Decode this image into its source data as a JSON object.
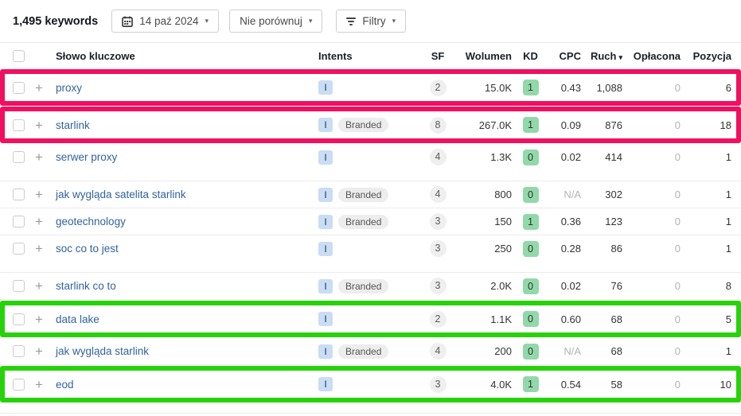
{
  "toolbar": {
    "keywords_count": "1,495 keywords",
    "date_button": "14 paź 2024",
    "compare_button": "Nie porównuj",
    "filter_button": "Filtry"
  },
  "icons": {
    "calendar-icon": "svg-calendar-glyph",
    "filter-icon": "three-horizontal-bars",
    "caret-down-icon": "▾",
    "sort-desc-icon": "▾",
    "plus-icon": "+"
  },
  "table": {
    "headers": {
      "keyword": "Słowo kluczowe",
      "intents": "Intents",
      "sf": "SF",
      "volume": "Wolumen",
      "kd": "KD",
      "cpc": "CPC",
      "traffic": "Ruch",
      "paid": "Opłacona",
      "position": "Pozycja"
    },
    "sorted_by": "traffic",
    "rows": [
      {
        "keyword": "proxy",
        "intents": [
          "I"
        ],
        "sf": "2",
        "volume": "15.0K",
        "kd": "1",
        "cpc": "0.43",
        "traffic": "1,088",
        "paid": "0",
        "position": "6",
        "highlight": "pink"
      },
      {
        "keyword": "starlink",
        "intents": [
          "I",
          "Branded"
        ],
        "sf": "8",
        "volume": "267.0K",
        "kd": "1",
        "cpc": "0.09",
        "traffic": "876",
        "paid": "0",
        "position": "18",
        "highlight": "pink"
      },
      {
        "keyword": "serwer proxy",
        "intents": [
          "I"
        ],
        "sf": "4",
        "volume": "1.3K",
        "kd": "0",
        "cpc": "0.02",
        "traffic": "414",
        "paid": "0",
        "position": "1",
        "gap_after": true
      },
      {
        "keyword": "jak wygląda satelita starlink",
        "intents": [
          "I",
          "Branded"
        ],
        "sf": "4",
        "volume": "800",
        "kd": "0",
        "cpc": "N/A",
        "traffic": "302",
        "paid": "0",
        "position": "1"
      },
      {
        "keyword": "geotechnology",
        "intents": [
          "I",
          "Branded"
        ],
        "sf": "3",
        "volume": "150",
        "kd": "1",
        "cpc": "0.36",
        "traffic": "123",
        "paid": "0",
        "position": "1"
      },
      {
        "keyword": "soc co to jest",
        "intents": [
          "I"
        ],
        "sf": "3",
        "volume": "250",
        "kd": "0",
        "cpc": "0.28",
        "traffic": "86",
        "paid": "0",
        "position": "1",
        "gap_after": true
      },
      {
        "keyword": "starlink co to",
        "intents": [
          "I",
          "Branded"
        ],
        "sf": "3",
        "volume": "2.0K",
        "kd": "0",
        "cpc": "0.02",
        "traffic": "76",
        "paid": "0",
        "position": "8"
      },
      {
        "keyword": "data lake",
        "intents": [
          "I"
        ],
        "sf": "2",
        "volume": "1.1K",
        "kd": "0",
        "cpc": "0.60",
        "traffic": "68",
        "paid": "0",
        "position": "5",
        "highlight": "green"
      },
      {
        "keyword": "jak wygląda starlink",
        "intents": [
          "I",
          "Branded"
        ],
        "sf": "4",
        "volume": "200",
        "kd": "0",
        "cpc": "N/A",
        "traffic": "68",
        "paid": "0",
        "position": "1"
      },
      {
        "keyword": "eod",
        "intents": [
          "I"
        ],
        "sf": "3",
        "volume": "4.0K",
        "kd": "1",
        "cpc": "0.54",
        "traffic": "58",
        "paid": "0",
        "position": "10",
        "highlight": "green"
      }
    ]
  },
  "colors": {
    "highlight_pink": "#f0105f",
    "highlight_green": "#28d20a",
    "kd_badge_green": "#92d8a9",
    "intent_badge_blue": "#c9ddf4",
    "keyword_link_blue": "#31639c"
  }
}
